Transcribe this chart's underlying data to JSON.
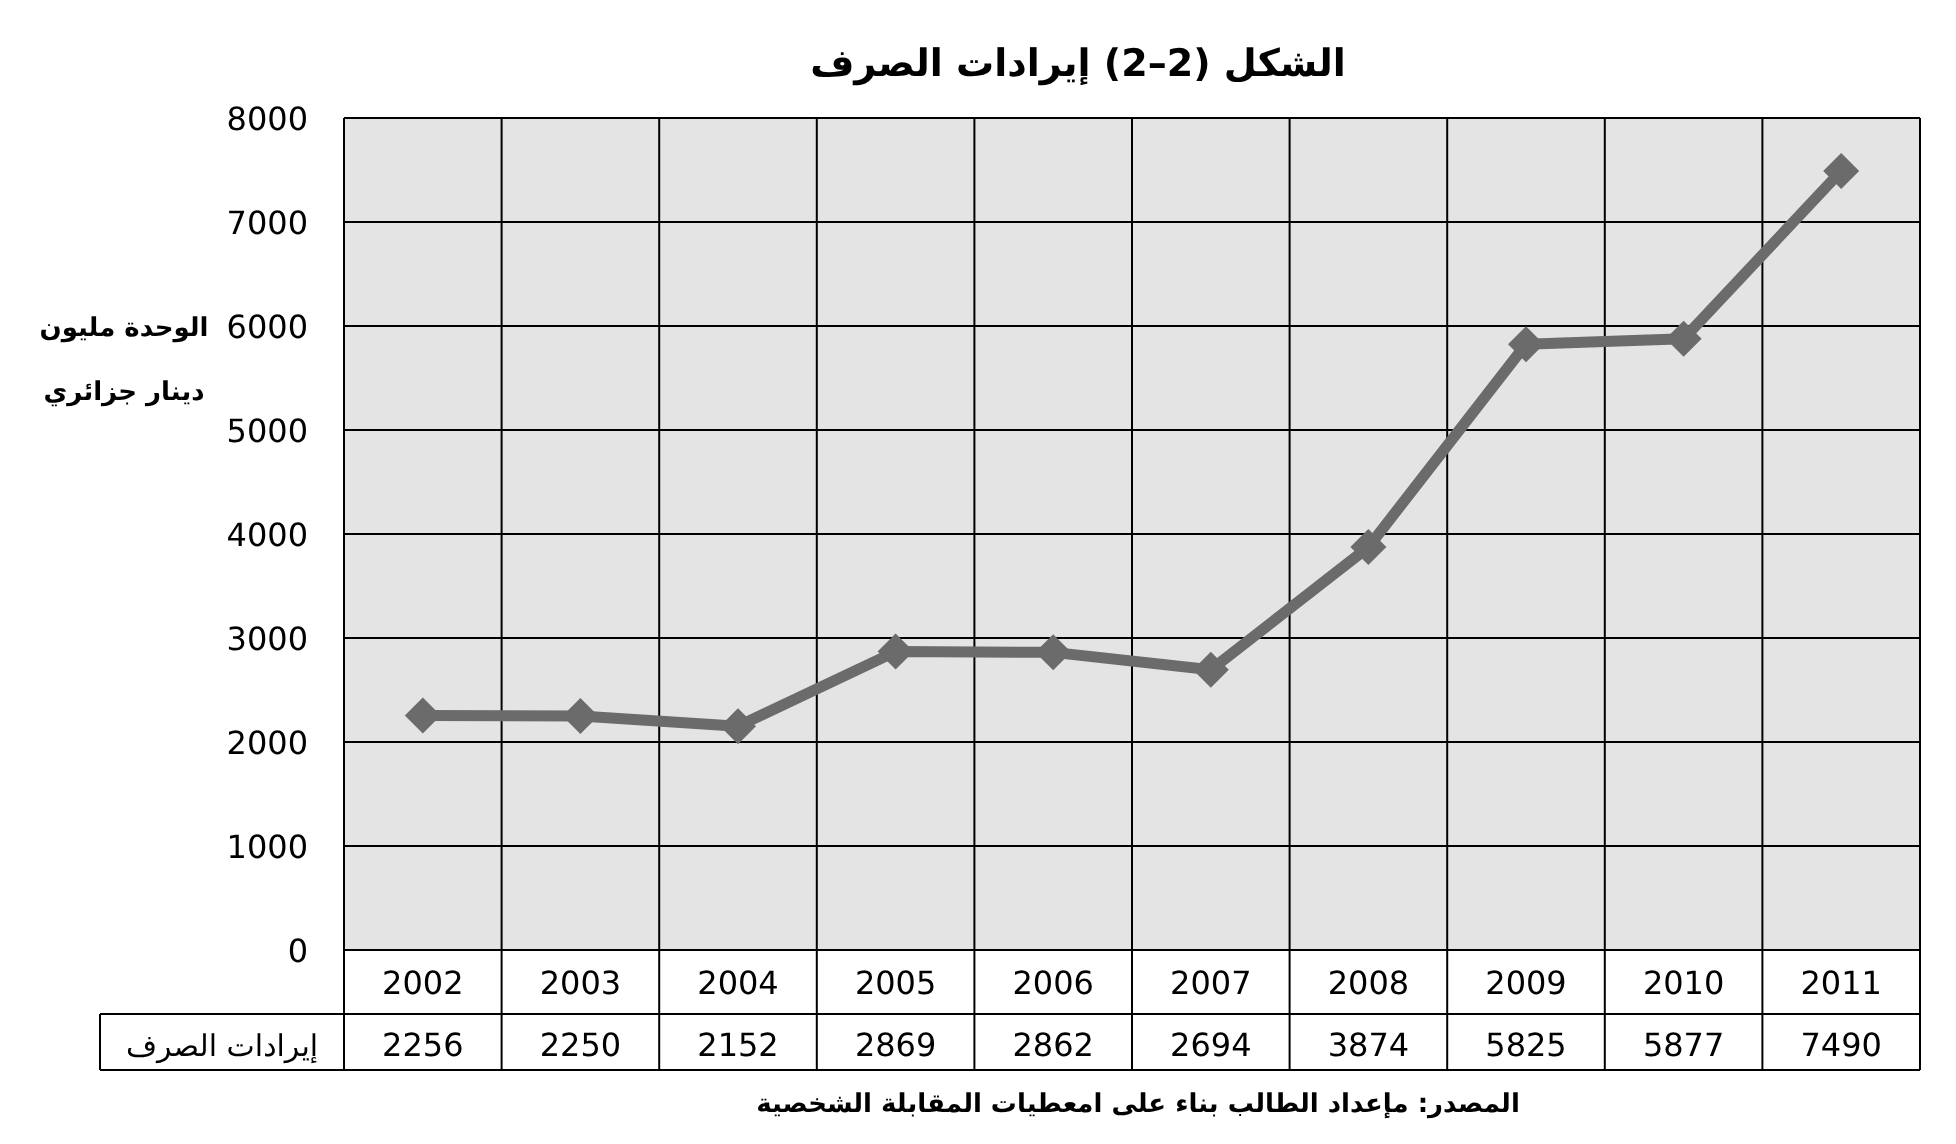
{
  "chart_data": {
    "type": "line",
    "title": "الشكل (2–2) إيرادات الصرف",
    "ylabel": "الوحدة مليون دينار جزائري",
    "categories": [
      "2002",
      "2003",
      "2004",
      "2005",
      "2006",
      "2007",
      "2008",
      "2009",
      "2010",
      "2011"
    ],
    "series": [
      {
        "name": "إيرادات الصرف",
        "color": "#6b6b6b",
        "values": [
          2256,
          2250,
          2152,
          2869,
          2862,
          2694,
          3874,
          5825,
          5877,
          7490
        ]
      }
    ],
    "ylim": [
      0,
      8000
    ],
    "yticks": [
      0,
      1000,
      2000,
      3000,
      4000,
      5000,
      6000,
      7000,
      8000
    ],
    "grid": true,
    "marker": "diamond",
    "line_style": "solid",
    "data_labels": true,
    "annotations": [
      "المصدر: مإعداد الطالب بناء على امعطيات المقابلة الشخصية"
    ]
  }
}
